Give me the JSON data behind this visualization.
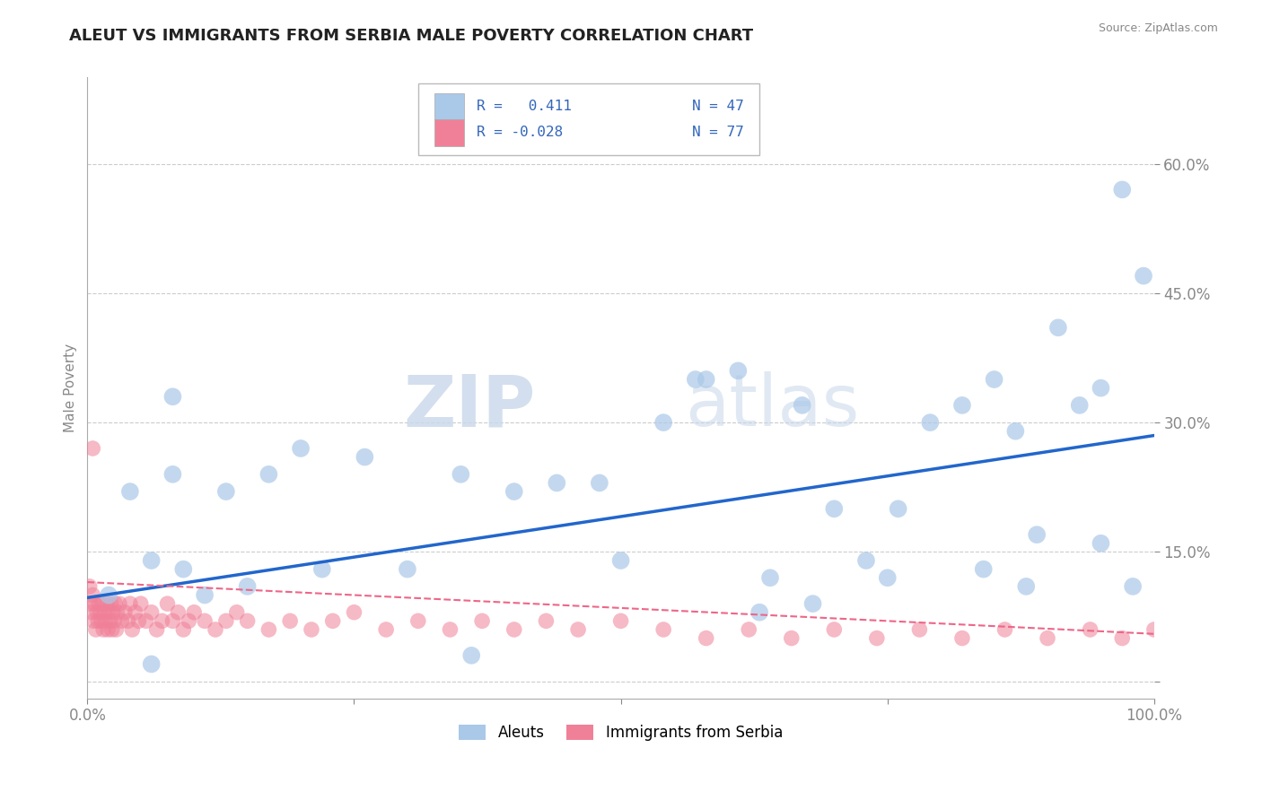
{
  "title": "ALEUT VS IMMIGRANTS FROM SERBIA MALE POVERTY CORRELATION CHART",
  "source_text": "Source: ZipAtlas.com",
  "ylabel": "Male Poverty",
  "xlim": [
    0,
    1.0
  ],
  "ylim": [
    -0.02,
    0.7
  ],
  "y_ticks": [
    0.0,
    0.15,
    0.3,
    0.45,
    0.6
  ],
  "y_tick_labels": [
    "",
    "15.0%",
    "30.0%",
    "45.0%",
    "60.0%"
  ],
  "x_ticks": [
    0.0,
    0.25,
    0.5,
    0.75,
    1.0
  ],
  "x_tick_labels": [
    "0.0%",
    "",
    "",
    "",
    "100.0%"
  ],
  "grid_color": "#cccccc",
  "background_color": "#ffffff",
  "aleut_color": "#aac8e8",
  "serbia_color": "#f08098",
  "aleut_line_color": "#2266cc",
  "serbia_line_color": "#ee6688",
  "legend_R_aleut": "R =   0.411",
  "legend_N_aleut": "N = 47",
  "legend_R_serbia": "R = -0.028",
  "legend_N_serbia": "N = 77",
  "watermark_zip": "ZIP",
  "watermark_atlas": "atlas",
  "aleut_x": [
    0.02,
    0.04,
    0.06,
    0.08,
    0.09,
    0.11,
    0.13,
    0.15,
    0.17,
    0.2,
    0.22,
    0.26,
    0.3,
    0.35,
    0.36,
    0.4,
    0.44,
    0.48,
    0.5,
    0.54,
    0.57,
    0.61,
    0.64,
    0.67,
    0.7,
    0.73,
    0.76,
    0.79,
    0.82,
    0.85,
    0.87,
    0.89,
    0.91,
    0.93,
    0.95,
    0.97,
    0.99,
    0.06,
    0.08,
    0.58,
    0.63,
    0.68,
    0.75,
    0.84,
    0.88,
    0.95,
    0.98
  ],
  "aleut_y": [
    0.1,
    0.22,
    0.14,
    0.24,
    0.13,
    0.1,
    0.22,
    0.11,
    0.24,
    0.27,
    0.13,
    0.26,
    0.13,
    0.24,
    0.03,
    0.22,
    0.23,
    0.23,
    0.14,
    0.3,
    0.35,
    0.36,
    0.12,
    0.32,
    0.2,
    0.14,
    0.2,
    0.3,
    0.32,
    0.35,
    0.29,
    0.17,
    0.41,
    0.32,
    0.34,
    0.57,
    0.47,
    0.02,
    0.33,
    0.35,
    0.08,
    0.09,
    0.12,
    0.13,
    0.11,
    0.16,
    0.11
  ],
  "serbia_x": [
    0.002,
    0.003,
    0.004,
    0.005,
    0.006,
    0.007,
    0.008,
    0.009,
    0.01,
    0.011,
    0.012,
    0.013,
    0.014,
    0.015,
    0.016,
    0.017,
    0.018,
    0.019,
    0.02,
    0.021,
    0.022,
    0.023,
    0.024,
    0.025,
    0.026,
    0.027,
    0.028,
    0.03,
    0.032,
    0.035,
    0.038,
    0.04,
    0.042,
    0.045,
    0.048,
    0.05,
    0.055,
    0.06,
    0.065,
    0.07,
    0.075,
    0.08,
    0.085,
    0.09,
    0.095,
    0.1,
    0.11,
    0.12,
    0.13,
    0.14,
    0.15,
    0.17,
    0.19,
    0.21,
    0.23,
    0.25,
    0.28,
    0.31,
    0.34,
    0.37,
    0.4,
    0.43,
    0.46,
    0.5,
    0.54,
    0.58,
    0.62,
    0.66,
    0.7,
    0.74,
    0.78,
    0.82,
    0.86,
    0.9,
    0.94,
    0.97,
    1.0
  ],
  "serbia_y": [
    0.11,
    0.09,
    0.08,
    0.1,
    0.07,
    0.09,
    0.06,
    0.08,
    0.07,
    0.09,
    0.08,
    0.07,
    0.09,
    0.06,
    0.08,
    0.07,
    0.09,
    0.06,
    0.08,
    0.07,
    0.09,
    0.06,
    0.08,
    0.07,
    0.09,
    0.06,
    0.08,
    0.09,
    0.07,
    0.08,
    0.07,
    0.09,
    0.06,
    0.08,
    0.07,
    0.09,
    0.07,
    0.08,
    0.06,
    0.07,
    0.09,
    0.07,
    0.08,
    0.06,
    0.07,
    0.08,
    0.07,
    0.06,
    0.07,
    0.08,
    0.07,
    0.06,
    0.07,
    0.06,
    0.07,
    0.08,
    0.06,
    0.07,
    0.06,
    0.07,
    0.06,
    0.07,
    0.06,
    0.07,
    0.06,
    0.05,
    0.06,
    0.05,
    0.06,
    0.05,
    0.06,
    0.05,
    0.06,
    0.05,
    0.06,
    0.05,
    0.06
  ],
  "serbia_extra_y": [
    0.27
  ],
  "serbia_extra_x": [
    0.005
  ],
  "aleut_trend_x": [
    0.0,
    1.0
  ],
  "aleut_trend_y": [
    0.097,
    0.285
  ],
  "serbia_trend_x": [
    0.0,
    1.0
  ],
  "serbia_trend_y": [
    0.115,
    0.055
  ]
}
